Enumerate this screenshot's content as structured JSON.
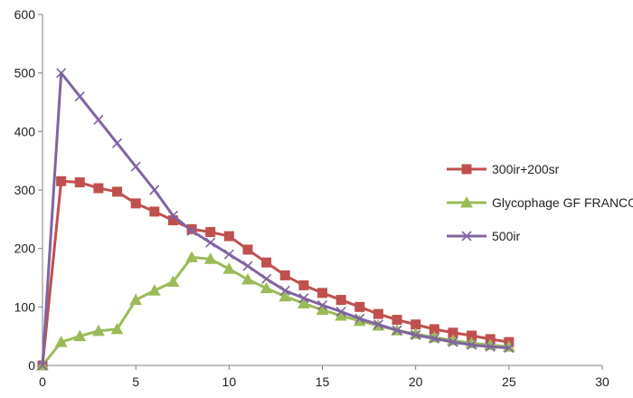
{
  "chart_data": {
    "type": "line",
    "title": "",
    "xlabel": "",
    "ylabel": "",
    "xlim": [
      0,
      30
    ],
    "ylim": [
      0,
      600
    ],
    "xticks": [
      0,
      5,
      10,
      15,
      20,
      25,
      30
    ],
    "yticks": [
      0,
      100,
      200,
      300,
      400,
      500,
      600
    ],
    "grid": false,
    "legend_position": "right",
    "series": [
      {
        "name": "300ir+200sr",
        "color": "#c0504d",
        "marker": "square",
        "x": [
          0,
          1,
          2,
          3,
          4,
          5,
          6,
          7,
          8,
          9,
          10,
          11,
          12,
          13,
          14,
          15,
          16,
          17,
          18,
          19,
          20,
          21,
          22,
          23,
          24,
          25
        ],
        "y": [
          0,
          315,
          313,
          303,
          297,
          277,
          263,
          248,
          233,
          228,
          221,
          198,
          176,
          154,
          137,
          124,
          112,
          100,
          88,
          78,
          70,
          62,
          56,
          51,
          45,
          40
        ]
      },
      {
        "name": "Glycophage GF FRANCO",
        "color": "#9bbb59",
        "marker": "triangle",
        "x": [
          0,
          1,
          2,
          3,
          4,
          5,
          6,
          7,
          8,
          9,
          10,
          11,
          12,
          13,
          14,
          15,
          16,
          17,
          18,
          19,
          20,
          21,
          22,
          23,
          24,
          25
        ],
        "y": [
          0,
          40,
          50,
          59,
          62,
          112,
          128,
          143,
          185,
          182,
          165,
          147,
          132,
          118,
          106,
          95,
          85,
          76,
          68,
          60,
          54,
          48,
          43,
          38,
          35,
          32
        ]
      },
      {
        "name": "500ir",
        "color": "#8064a2",
        "marker": "x",
        "x": [
          0,
          1,
          2,
          3,
          4,
          5,
          6,
          7,
          8,
          9,
          10,
          11,
          12,
          13,
          14,
          15,
          16,
          17,
          18,
          19,
          20,
          21,
          22,
          23,
          24,
          25
        ],
        "y": [
          0,
          500,
          460,
          420,
          380,
          340,
          300,
          256,
          230,
          210,
          190,
          170,
          148,
          128,
          115,
          103,
          92,
          80,
          70,
          60,
          52,
          46,
          40,
          35,
          32,
          30
        ]
      }
    ]
  }
}
